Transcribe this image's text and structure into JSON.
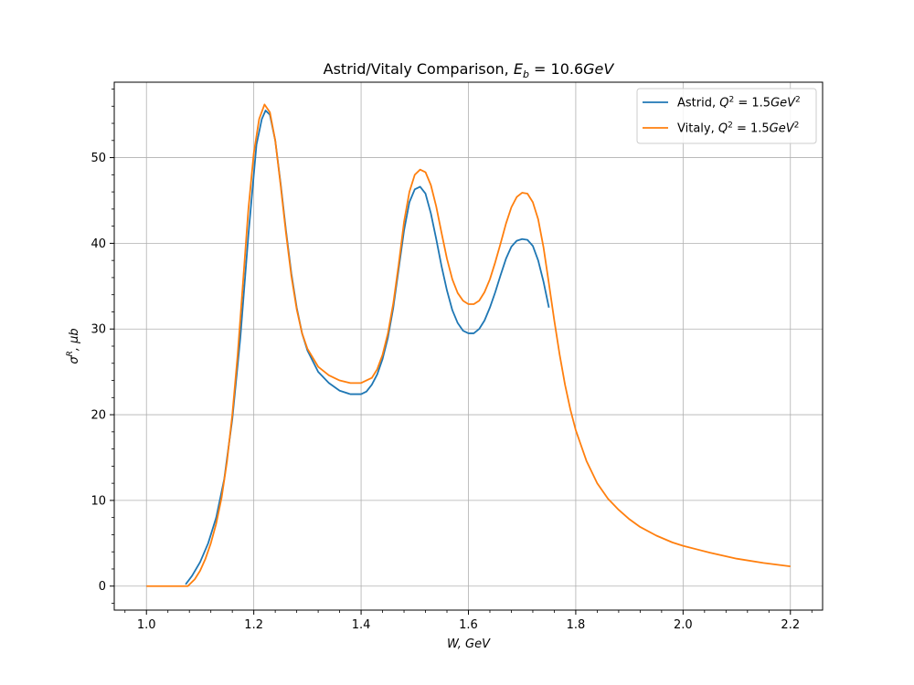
{
  "chart_data": {
    "type": "line",
    "title": "Astrid/Vitaly Comparison, E_b = 10.6 GeV",
    "xlabel": "W, GeV",
    "ylabel": "σ^R, μb",
    "xlim": [
      0.94,
      2.26
    ],
    "ylim": [
      -2.8,
      58.8
    ],
    "x_ticks": [
      "1.0",
      "1.2",
      "1.4",
      "1.6",
      "1.8",
      "2.0",
      "2.2"
    ],
    "x_tick_values": [
      1.0,
      1.2,
      1.4,
      1.6,
      1.8,
      2.0,
      2.2
    ],
    "y_ticks": [
      "0",
      "10",
      "20",
      "30",
      "40",
      "50"
    ],
    "y_tick_values": [
      0,
      10,
      20,
      30,
      40,
      50
    ],
    "grid": true,
    "legend_position": "top-right",
    "series": [
      {
        "name": "Astrid, Q^2 = 1.5 GeV^2",
        "color": "#1f77b4",
        "points": [
          [
            1.073,
            0.2
          ],
          [
            1.085,
            1.2
          ],
          [
            1.1,
            2.8
          ],
          [
            1.115,
            5.0
          ],
          [
            1.13,
            8.0
          ],
          [
            1.145,
            12.5
          ],
          [
            1.16,
            19.5
          ],
          [
            1.175,
            29.0
          ],
          [
            1.19,
            41.0
          ],
          [
            1.205,
            51.5
          ],
          [
            1.215,
            54.5
          ],
          [
            1.222,
            55.5
          ],
          [
            1.23,
            55.0
          ],
          [
            1.24,
            52.0
          ],
          [
            1.25,
            47.0
          ],
          [
            1.26,
            41.5
          ],
          [
            1.27,
            36.5
          ],
          [
            1.28,
            32.5
          ],
          [
            1.29,
            29.5
          ],
          [
            1.3,
            27.5
          ],
          [
            1.32,
            25.0
          ],
          [
            1.34,
            23.7
          ],
          [
            1.36,
            22.8
          ],
          [
            1.38,
            22.4
          ],
          [
            1.4,
            22.4
          ],
          [
            1.41,
            22.7
          ],
          [
            1.42,
            23.5
          ],
          [
            1.43,
            24.7
          ],
          [
            1.44,
            26.5
          ],
          [
            1.45,
            29.0
          ],
          [
            1.46,
            32.5
          ],
          [
            1.47,
            37.0
          ],
          [
            1.48,
            41.5
          ],
          [
            1.49,
            44.8
          ],
          [
            1.5,
            46.3
          ],
          [
            1.51,
            46.6
          ],
          [
            1.52,
            45.8
          ],
          [
            1.53,
            43.5
          ],
          [
            1.54,
            40.5
          ],
          [
            1.55,
            37.3
          ],
          [
            1.56,
            34.5
          ],
          [
            1.57,
            32.2
          ],
          [
            1.58,
            30.7
          ],
          [
            1.59,
            29.8
          ],
          [
            1.6,
            29.5
          ],
          [
            1.61,
            29.5
          ],
          [
            1.62,
            30.0
          ],
          [
            1.63,
            31.0
          ],
          [
            1.64,
            32.5
          ],
          [
            1.65,
            34.3
          ],
          [
            1.66,
            36.3
          ],
          [
            1.67,
            38.2
          ],
          [
            1.68,
            39.6
          ],
          [
            1.69,
            40.3
          ],
          [
            1.7,
            40.5
          ],
          [
            1.71,
            40.4
          ],
          [
            1.72,
            39.7
          ],
          [
            1.73,
            38.0
          ],
          [
            1.74,
            35.5
          ],
          [
            1.75,
            32.5
          ]
        ]
      },
      {
        "name": "Vitaly, Q^2 = 1.5 GeV^2",
        "color": "#ff7f0e",
        "points": [
          [
            1.0,
            0.0
          ],
          [
            1.03,
            0.0
          ],
          [
            1.06,
            0.0
          ],
          [
            1.077,
            0.0
          ],
          [
            1.09,
            0.8
          ],
          [
            1.1,
            1.8
          ],
          [
            1.11,
            3.2
          ],
          [
            1.12,
            5.0
          ],
          [
            1.13,
            7.3
          ],
          [
            1.14,
            10.3
          ],
          [
            1.15,
            14.5
          ],
          [
            1.16,
            20.0
          ],
          [
            1.17,
            27.0
          ],
          [
            1.18,
            35.5
          ],
          [
            1.19,
            44.0
          ],
          [
            1.2,
            50.5
          ],
          [
            1.21,
            54.5
          ],
          [
            1.22,
            56.2
          ],
          [
            1.23,
            55.3
          ],
          [
            1.24,
            52.0
          ],
          [
            1.25,
            46.8
          ],
          [
            1.26,
            41.2
          ],
          [
            1.27,
            36.2
          ],
          [
            1.28,
            32.3
          ],
          [
            1.29,
            29.5
          ],
          [
            1.3,
            27.7
          ],
          [
            1.32,
            25.6
          ],
          [
            1.34,
            24.6
          ],
          [
            1.36,
            24.0
          ],
          [
            1.38,
            23.7
          ],
          [
            1.4,
            23.7
          ],
          [
            1.42,
            24.3
          ],
          [
            1.43,
            25.3
          ],
          [
            1.44,
            27.0
          ],
          [
            1.45,
            29.5
          ],
          [
            1.46,
            33.0
          ],
          [
            1.47,
            37.5
          ],
          [
            1.48,
            42.5
          ],
          [
            1.49,
            46.0
          ],
          [
            1.5,
            48.0
          ],
          [
            1.51,
            48.6
          ],
          [
            1.52,
            48.3
          ],
          [
            1.53,
            46.8
          ],
          [
            1.54,
            44.3
          ],
          [
            1.55,
            41.2
          ],
          [
            1.56,
            38.2
          ],
          [
            1.57,
            35.8
          ],
          [
            1.58,
            34.2
          ],
          [
            1.59,
            33.3
          ],
          [
            1.6,
            32.9
          ],
          [
            1.61,
            32.9
          ],
          [
            1.62,
            33.3
          ],
          [
            1.63,
            34.3
          ],
          [
            1.64,
            35.8
          ],
          [
            1.65,
            37.8
          ],
          [
            1.66,
            40.0
          ],
          [
            1.67,
            42.3
          ],
          [
            1.68,
            44.2
          ],
          [
            1.69,
            45.4
          ],
          [
            1.7,
            45.9
          ],
          [
            1.71,
            45.8
          ],
          [
            1.72,
            44.8
          ],
          [
            1.73,
            42.8
          ],
          [
            1.74,
            39.5
          ],
          [
            1.75,
            35.3
          ],
          [
            1.76,
            31.0
          ],
          [
            1.77,
            27.0
          ],
          [
            1.78,
            23.5
          ],
          [
            1.79,
            20.6
          ],
          [
            1.8,
            18.2
          ],
          [
            1.82,
            14.6
          ],
          [
            1.84,
            12.0
          ],
          [
            1.86,
            10.2
          ],
          [
            1.88,
            8.9
          ],
          [
            1.9,
            7.8
          ],
          [
            1.92,
            6.9
          ],
          [
            1.95,
            5.9
          ],
          [
            1.98,
            5.1
          ],
          [
            2.0,
            4.7
          ],
          [
            2.05,
            3.9
          ],
          [
            2.1,
            3.2
          ],
          [
            2.15,
            2.7
          ],
          [
            2.2,
            2.3
          ]
        ]
      }
    ]
  }
}
